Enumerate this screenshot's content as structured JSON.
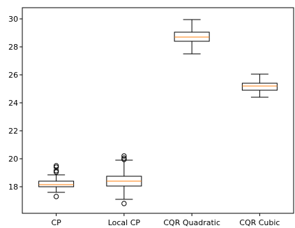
{
  "chart_data": {
    "type": "box",
    "title": "",
    "xlabel": "",
    "ylabel": "",
    "ylim": [
      16.1,
      30.8
    ],
    "yticks": [
      18,
      20,
      22,
      24,
      26,
      28,
      30
    ],
    "grid": false,
    "categories": [
      "CP",
      "Local CP",
      "CQR Quadratic",
      "CQR Cubic"
    ],
    "boxes": [
      {
        "category": "CP",
        "whisker_low": 17.6,
        "q1": 18.0,
        "median": 18.15,
        "q3": 18.4,
        "whisker_high": 18.85,
        "outliers": [
          17.3,
          19.05,
          19.15,
          19.4,
          19.5
        ]
      },
      {
        "category": "Local CP",
        "whisker_low": 17.1,
        "q1": 18.05,
        "median": 18.4,
        "q3": 18.75,
        "whisker_high": 19.9,
        "outliers": [
          16.8,
          19.95,
          20.05,
          20.2
        ]
      },
      {
        "category": "CQR Quadratic",
        "whisker_low": 27.5,
        "q1": 28.4,
        "median": 28.7,
        "q3": 29.05,
        "whisker_high": 29.95,
        "outliers": []
      },
      {
        "category": "CQR Cubic",
        "whisker_low": 24.4,
        "q1": 24.9,
        "median": 25.2,
        "q3": 25.4,
        "whisker_high": 26.05,
        "outliers": []
      }
    ],
    "colors": {
      "box": "#000000",
      "median": "#ff7f0e",
      "outlier": "#000000"
    }
  }
}
